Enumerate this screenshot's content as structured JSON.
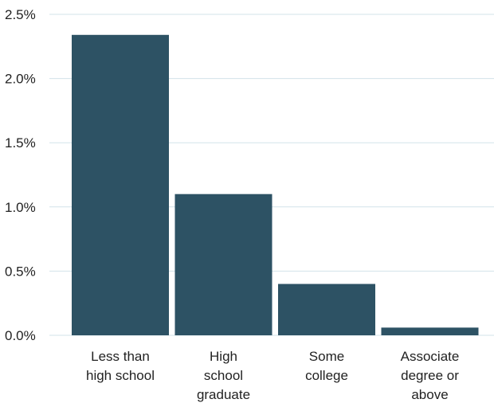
{
  "chart_data": {
    "type": "bar",
    "categories": [
      [
        "Less than",
        "high school"
      ],
      [
        "High",
        "school",
        "graduate"
      ],
      [
        "Some",
        "college"
      ],
      [
        "Associate",
        "degree or",
        "above"
      ]
    ],
    "values": [
      2.34,
      1.1,
      0.4,
      0.06
    ],
    "y_ticks": [
      "0.0%",
      "0.5%",
      "1.0%",
      "1.5%",
      "2.0%",
      "2.5%"
    ],
    "ylim": [
      0,
      2.5
    ],
    "grid": true,
    "bar_color": "#2d5264",
    "grid_color": "#d3e3ea",
    "text_color": "#222222"
  }
}
